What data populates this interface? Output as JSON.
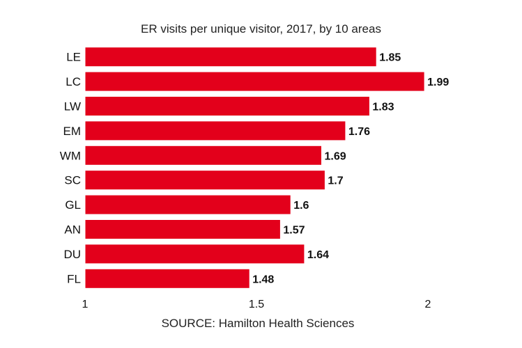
{
  "chart_data": {
    "type": "bar",
    "orientation": "horizontal",
    "title": "ER visits per unique visitor, 2017, by 10 areas",
    "source": "SOURCE:  Hamilton Health Sciences",
    "categories": [
      "LE",
      "LC",
      "LW",
      "EM",
      "WM",
      "SC",
      "GL",
      "AN",
      "DU",
      "FL"
    ],
    "values": [
      1.85,
      1.99,
      1.83,
      1.76,
      1.69,
      1.7,
      1.6,
      1.57,
      1.64,
      1.48
    ],
    "value_labels": [
      "1.85",
      "1.99",
      "1.83",
      "1.76",
      "1.69",
      "1.7",
      "1.6",
      "1.57",
      "1.64",
      "1.48"
    ],
    "xlim": [
      1,
      2
    ],
    "x_ticks": [
      1,
      1.5,
      2
    ],
    "x_tick_labels": [
      "1",
      "1.5",
      "2"
    ],
    "xlabel": "",
    "ylabel": "",
    "grid": false,
    "legend": "none",
    "bar_color": "#e3001b",
    "bar_edge_color": "#ffffff"
  }
}
